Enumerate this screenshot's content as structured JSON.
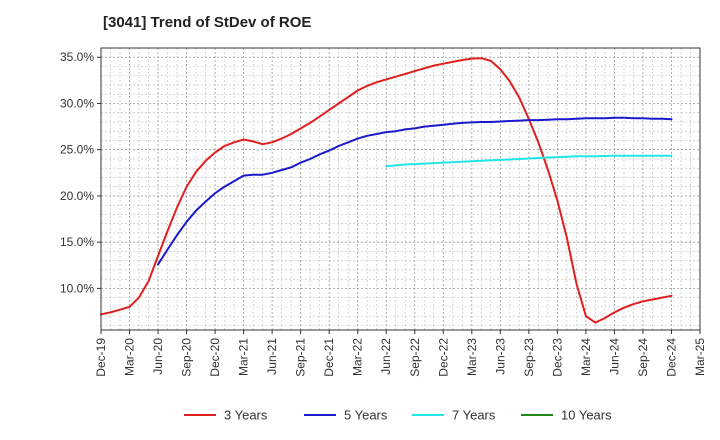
{
  "chart_data": {
    "type": "line",
    "title": "[3041]  Trend of StDev of ROE",
    "xlabel": "",
    "ylabel": "",
    "x_ticks": [
      "Dec-19",
      "Mar-20",
      "Jun-20",
      "Sep-20",
      "Dec-20",
      "Mar-21",
      "Jun-21",
      "Sep-21",
      "Dec-21",
      "Mar-22",
      "Jun-22",
      "Sep-22",
      "Dec-22",
      "Mar-23",
      "Jun-23",
      "Sep-23",
      "Dec-23",
      "Mar-24",
      "Jun-24",
      "Sep-24",
      "Dec-24",
      "Mar-25"
    ],
    "y_ticks": [
      "10.0%",
      "15.0%",
      "20.0%",
      "25.0%",
      "30.0%",
      "35.0%"
    ],
    "y_tick_values": [
      10,
      15,
      20,
      25,
      30,
      35
    ],
    "ylim": [
      5.5,
      36
    ],
    "grid": true,
    "legend_position": "bottom",
    "series": [
      {
        "name": "3 Years",
        "color": "#e02020",
        "points": [
          [
            0,
            7.2
          ],
          [
            0.33,
            7.4
          ],
          [
            0.67,
            7.7
          ],
          [
            1,
            8.0
          ],
          [
            1.33,
            9.0
          ],
          [
            1.67,
            10.8
          ],
          [
            2,
            13.5
          ],
          [
            2.33,
            16.2
          ],
          [
            2.67,
            18.8
          ],
          [
            3,
            21.0
          ],
          [
            3.33,
            22.6
          ],
          [
            3.67,
            23.8
          ],
          [
            4,
            24.7
          ],
          [
            4.33,
            25.4
          ],
          [
            4.67,
            25.8
          ],
          [
            5,
            26.1
          ],
          [
            5.33,
            25.9
          ],
          [
            5.67,
            25.6
          ],
          [
            6,
            25.8
          ],
          [
            6.33,
            26.2
          ],
          [
            6.67,
            26.7
          ],
          [
            7,
            27.3
          ],
          [
            7.33,
            27.9
          ],
          [
            7.67,
            28.6
          ],
          [
            8,
            29.3
          ],
          [
            8.33,
            30.0
          ],
          [
            8.67,
            30.7
          ],
          [
            9,
            31.4
          ],
          [
            9.33,
            31.9
          ],
          [
            9.67,
            32.3
          ],
          [
            10,
            32.6
          ],
          [
            10.33,
            32.9
          ],
          [
            10.67,
            33.2
          ],
          [
            11,
            33.5
          ],
          [
            11.33,
            33.8
          ],
          [
            11.67,
            34.1
          ],
          [
            12,
            34.3
          ],
          [
            12.33,
            34.5
          ],
          [
            12.67,
            34.7
          ],
          [
            13,
            34.85
          ],
          [
            13.33,
            34.9
          ],
          [
            13.67,
            34.6
          ],
          [
            14,
            33.7
          ],
          [
            14.33,
            32.4
          ],
          [
            14.67,
            30.6
          ],
          [
            15,
            28.3
          ],
          [
            15.33,
            25.8
          ],
          [
            15.67,
            22.8
          ],
          [
            16,
            19.5
          ],
          [
            16.33,
            15.5
          ],
          [
            16.67,
            10.5
          ],
          [
            17,
            7.0
          ],
          [
            17.33,
            6.3
          ],
          [
            17.67,
            6.8
          ],
          [
            18,
            7.4
          ],
          [
            18.33,
            7.9
          ],
          [
            18.67,
            8.3
          ],
          [
            19,
            8.6
          ],
          [
            19.33,
            8.8
          ],
          [
            19.67,
            9.0
          ],
          [
            20,
            9.2
          ]
        ]
      },
      {
        "name": "5 Years",
        "color": "#1a1acc",
        "points": [
          [
            2,
            12.6
          ],
          [
            2.33,
            14.2
          ],
          [
            2.67,
            15.8
          ],
          [
            3,
            17.2
          ],
          [
            3.33,
            18.4
          ],
          [
            3.67,
            19.4
          ],
          [
            4,
            20.3
          ],
          [
            4.33,
            21.0
          ],
          [
            4.67,
            21.6
          ],
          [
            5,
            22.2
          ],
          [
            5.33,
            22.3
          ],
          [
            5.67,
            22.3
          ],
          [
            6,
            22.5
          ],
          [
            6.33,
            22.8
          ],
          [
            6.67,
            23.1
          ],
          [
            7,
            23.6
          ],
          [
            7.33,
            24.0
          ],
          [
            7.67,
            24.5
          ],
          [
            8,
            24.9
          ],
          [
            8.33,
            25.4
          ],
          [
            8.67,
            25.8
          ],
          [
            9,
            26.2
          ],
          [
            9.33,
            26.5
          ],
          [
            9.67,
            26.7
          ],
          [
            10,
            26.9
          ],
          [
            10.33,
            27.0
          ],
          [
            10.67,
            27.2
          ],
          [
            11,
            27.3
          ],
          [
            11.33,
            27.5
          ],
          [
            11.67,
            27.6
          ],
          [
            12,
            27.7
          ],
          [
            12.33,
            27.8
          ],
          [
            12.67,
            27.9
          ],
          [
            13,
            27.95
          ],
          [
            13.33,
            28.0
          ],
          [
            13.67,
            28.0
          ],
          [
            14,
            28.05
          ],
          [
            14.33,
            28.1
          ],
          [
            14.67,
            28.15
          ],
          [
            15,
            28.2
          ],
          [
            15.33,
            28.2
          ],
          [
            15.67,
            28.25
          ],
          [
            16,
            28.3
          ],
          [
            16.33,
            28.3
          ],
          [
            16.67,
            28.35
          ],
          [
            17,
            28.4
          ],
          [
            17.33,
            28.4
          ],
          [
            17.67,
            28.4
          ],
          [
            18,
            28.45
          ],
          [
            18.33,
            28.45
          ],
          [
            18.67,
            28.4
          ],
          [
            19,
            28.4
          ],
          [
            19.33,
            28.35
          ],
          [
            19.67,
            28.35
          ],
          [
            20,
            28.3
          ]
        ]
      },
      {
        "name": "7 Years",
        "color": "#22e5e5",
        "points": [
          [
            10,
            23.2
          ],
          [
            10.67,
            23.4
          ],
          [
            11.33,
            23.5
          ],
          [
            12,
            23.6
          ],
          [
            12.67,
            23.7
          ],
          [
            13.33,
            23.8
          ],
          [
            14,
            23.9
          ],
          [
            14.67,
            24.0
          ],
          [
            15.33,
            24.1
          ],
          [
            16,
            24.2
          ],
          [
            16.67,
            24.3
          ],
          [
            17.33,
            24.3
          ],
          [
            18,
            24.35
          ],
          [
            18.67,
            24.35
          ],
          [
            19.33,
            24.35
          ],
          [
            20,
            24.35
          ]
        ]
      },
      {
        "name": "10 Years",
        "color": "#1e8a1e",
        "points": []
      }
    ]
  }
}
